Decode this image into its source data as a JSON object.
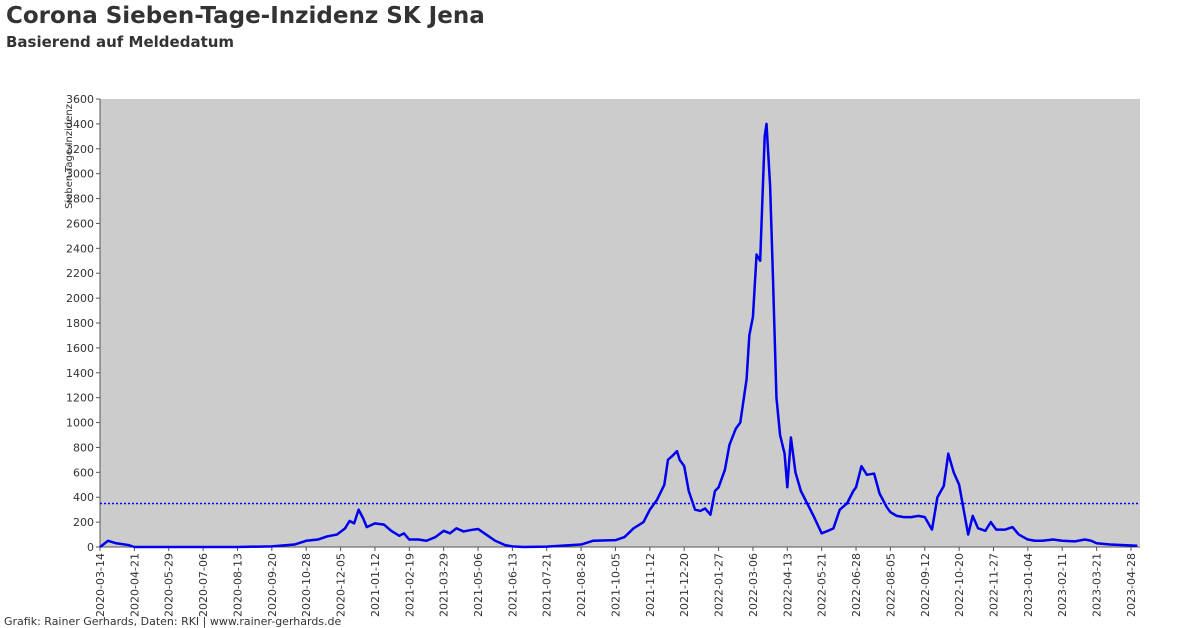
{
  "chart_data": {
    "type": "line",
    "title": "Corona Sieben-Tage-Inzidenz SK Jena",
    "subtitle": "Basierend auf Meldedatum",
    "y_label": "Sieben-Tage-Inzidenz",
    "footer": "Grafik: Rainer Gerhards, Daten: RKI | www.rainer-gerhards.de",
    "background": "#cccccc",
    "reference_line": {
      "value": 350,
      "color": "#0000ee"
    },
    "xlim": [
      "2020-03-14",
      "2023-05-08"
    ],
    "xticks": [
      "2020-03-14",
      "2020-04-21",
      "2020-05-29",
      "2020-07-06",
      "2020-08-13",
      "2020-09-20",
      "2020-10-28",
      "2020-12-05",
      "2021-01-12",
      "2021-02-19",
      "2021-03-29",
      "2021-05-06",
      "2021-06-13",
      "2021-07-21",
      "2021-08-28",
      "2021-10-05",
      "2021-11-12",
      "2021-12-20",
      "2022-01-27",
      "2022-03-06",
      "2022-04-13",
      "2022-05-21",
      "2022-06-28",
      "2022-08-05",
      "2022-09-12",
      "2022-10-20",
      "2022-11-27",
      "2023-01-04",
      "2023-02-11",
      "2023-03-21",
      "2023-04-28"
    ],
    "ylim": [
      0,
      3600
    ],
    "yticks": [
      0,
      200,
      400,
      600,
      800,
      1000,
      1200,
      1400,
      1600,
      1800,
      2000,
      2200,
      2400,
      2600,
      2800,
      3000,
      3200,
      3400,
      3600
    ],
    "x": [
      "2020-03-14",
      "2020-03-23",
      "2020-04-01",
      "2020-04-15",
      "2020-04-21",
      "2020-08-13",
      "2020-09-20",
      "2020-10-15",
      "2020-10-28",
      "2020-11-10",
      "2020-11-20",
      "2020-12-01",
      "2020-12-10",
      "2020-12-15",
      "2020-12-20",
      "2020-12-25",
      "2020-12-30",
      "2021-01-03",
      "2021-01-12",
      "2021-01-22",
      "2021-01-30",
      "2021-02-08",
      "2021-02-13",
      "2021-02-19",
      "2021-03-01",
      "2021-03-10",
      "2021-03-20",
      "2021-03-29",
      "2021-04-05",
      "2021-04-12",
      "2021-04-20",
      "2021-05-01",
      "2021-05-06",
      "2021-05-15",
      "2021-05-25",
      "2021-06-05",
      "2021-06-13",
      "2021-06-25",
      "2021-07-21",
      "2021-08-28",
      "2021-09-10",
      "2021-10-05",
      "2021-10-15",
      "2021-10-25",
      "2021-11-05",
      "2021-11-12",
      "2021-11-20",
      "2021-11-28",
      "2021-12-02",
      "2021-12-08",
      "2021-12-12",
      "2021-12-15",
      "2021-12-20",
      "2021-12-25",
      "2022-01-01",
      "2022-01-07",
      "2022-01-12",
      "2022-01-18",
      "2022-01-23",
      "2022-01-27",
      "2022-02-03",
      "2022-02-08",
      "2022-02-15",
      "2022-02-20",
      "2022-02-27",
      "2022-03-02",
      "2022-03-06",
      "2022-03-10",
      "2022-03-14",
      "2022-03-19",
      "2022-03-21",
      "2022-03-25",
      "2022-03-28",
      "2022-04-01",
      "2022-04-05",
      "2022-04-10",
      "2022-04-13",
      "2022-04-17",
      "2022-04-22",
      "2022-04-28",
      "2022-05-05",
      "2022-05-12",
      "2022-05-21",
      "2022-05-28",
      "2022-06-03",
      "2022-06-10",
      "2022-06-18",
      "2022-06-25",
      "2022-06-28",
      "2022-07-04",
      "2022-07-10",
      "2022-07-18",
      "2022-07-24",
      "2022-08-01",
      "2022-08-05",
      "2022-08-12",
      "2022-08-20",
      "2022-08-28",
      "2022-09-05",
      "2022-09-12",
      "2022-09-20",
      "2022-09-26",
      "2022-10-03",
      "2022-10-08",
      "2022-10-14",
      "2022-10-20",
      "2022-10-25",
      "2022-10-30",
      "2022-11-04",
      "2022-11-10",
      "2022-11-18",
      "2022-11-24",
      "2022-11-30",
      "2022-12-10",
      "2022-12-18",
      "2022-12-25",
      "2023-01-04",
      "2023-01-12",
      "2023-01-20",
      "2023-02-01",
      "2023-02-11",
      "2023-02-25",
      "2023-03-08",
      "2023-03-15",
      "2023-03-21",
      "2023-04-05",
      "2023-04-20",
      "2023-05-05"
    ],
    "series": [
      {
        "name": "Sieben-Tage-Inzidenz",
        "color": "#0000ee",
        "values": [
          0,
          50,
          30,
          15,
          0,
          0,
          5,
          20,
          50,
          60,
          85,
          100,
          150,
          210,
          190,
          300,
          230,
          160,
          190,
          180,
          130,
          90,
          110,
          60,
          60,
          50,
          80,
          130,
          110,
          150,
          125,
          140,
          145,
          100,
          50,
          15,
          5,
          0,
          3,
          20,
          50,
          55,
          80,
          150,
          200,
          300,
          380,
          500,
          700,
          740,
          770,
          700,
          650,
          450,
          300,
          290,
          310,
          260,
          450,
          480,
          620,
          820,
          950,
          1000,
          1350,
          1700,
          1850,
          2350,
          2300,
          3300,
          3400,
          2900,
          2200,
          1200,
          900,
          750,
          480,
          880,
          600,
          450,
          350,
          250,
          110,
          130,
          150,
          300,
          350,
          450,
          480,
          650,
          580,
          590,
          430,
          320,
          280,
          250,
          240,
          240,
          250,
          240,
          140,
          400,
          490,
          750,
          600,
          500,
          300,
          100,
          250,
          150,
          130,
          200,
          140,
          140,
          160,
          100,
          60,
          50,
          50,
          60,
          50,
          45,
          60,
          50,
          30,
          20,
          15,
          10
        ]
      }
    ]
  }
}
